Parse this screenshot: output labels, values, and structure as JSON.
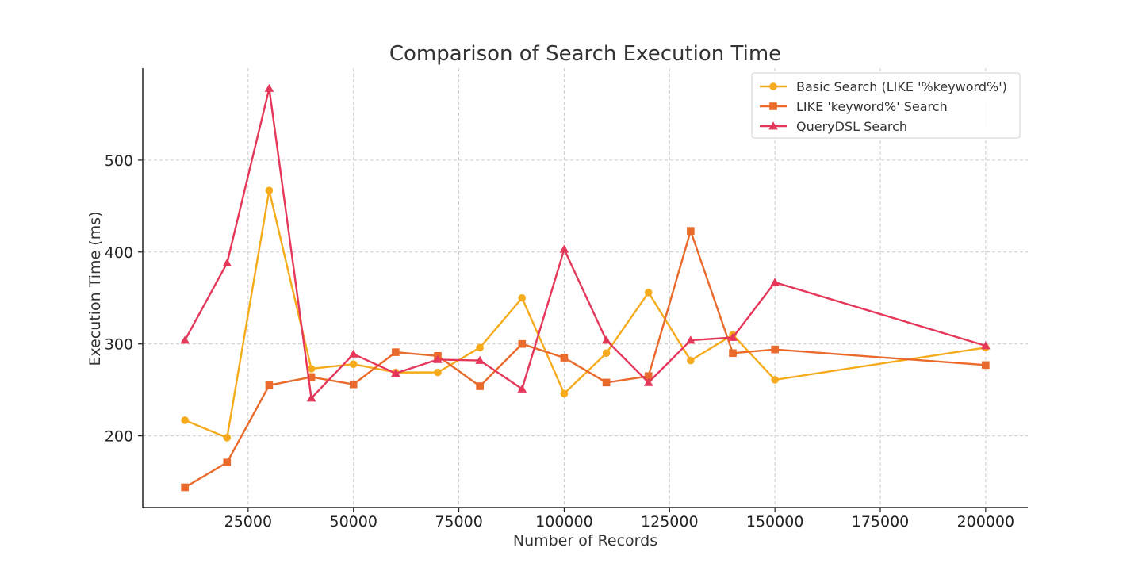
{
  "chart_data": {
    "type": "line",
    "title": "Comparison of Search Execution Time",
    "xlabel": "Number of Records",
    "ylabel": "Execution Time (ms)",
    "xlim": [
      0,
      210000
    ],
    "ylim": [
      122,
      600
    ],
    "xticks": [
      25000,
      50000,
      75000,
      100000,
      125000,
      150000,
      175000,
      200000
    ],
    "yticks": [
      200,
      300,
      400,
      500
    ],
    "grid": true,
    "legend_position": "top-right",
    "x": [
      10000,
      20000,
      30000,
      40000,
      50000,
      60000,
      70000,
      80000,
      90000,
      100000,
      110000,
      120000,
      130000,
      140000,
      150000,
      200000
    ],
    "series": [
      {
        "name": "Basic Search (LIKE '%keyword%')",
        "color": "#f5ab1b",
        "marker": "circle",
        "values": [
          217,
          198,
          467,
          273,
          278,
          269,
          269,
          296,
          350,
          246,
          290,
          356,
          282,
          310,
          261,
          296
        ]
      },
      {
        "name": "LIKE 'keyword%' Search",
        "color": "#ea6a2b",
        "marker": "square",
        "values": [
          144,
          171,
          255,
          264,
          256,
          291,
          287,
          254,
          300,
          285,
          258,
          265,
          423,
          290,
          294,
          277
        ]
      },
      {
        "name": "QueryDSL Search",
        "color": "#e5375a",
        "marker": "triangle",
        "values": [
          304,
          388,
          578,
          241,
          289,
          268,
          283,
          282,
          251,
          403,
          304,
          258,
          304,
          307,
          367,
          298
        ]
      }
    ]
  }
}
